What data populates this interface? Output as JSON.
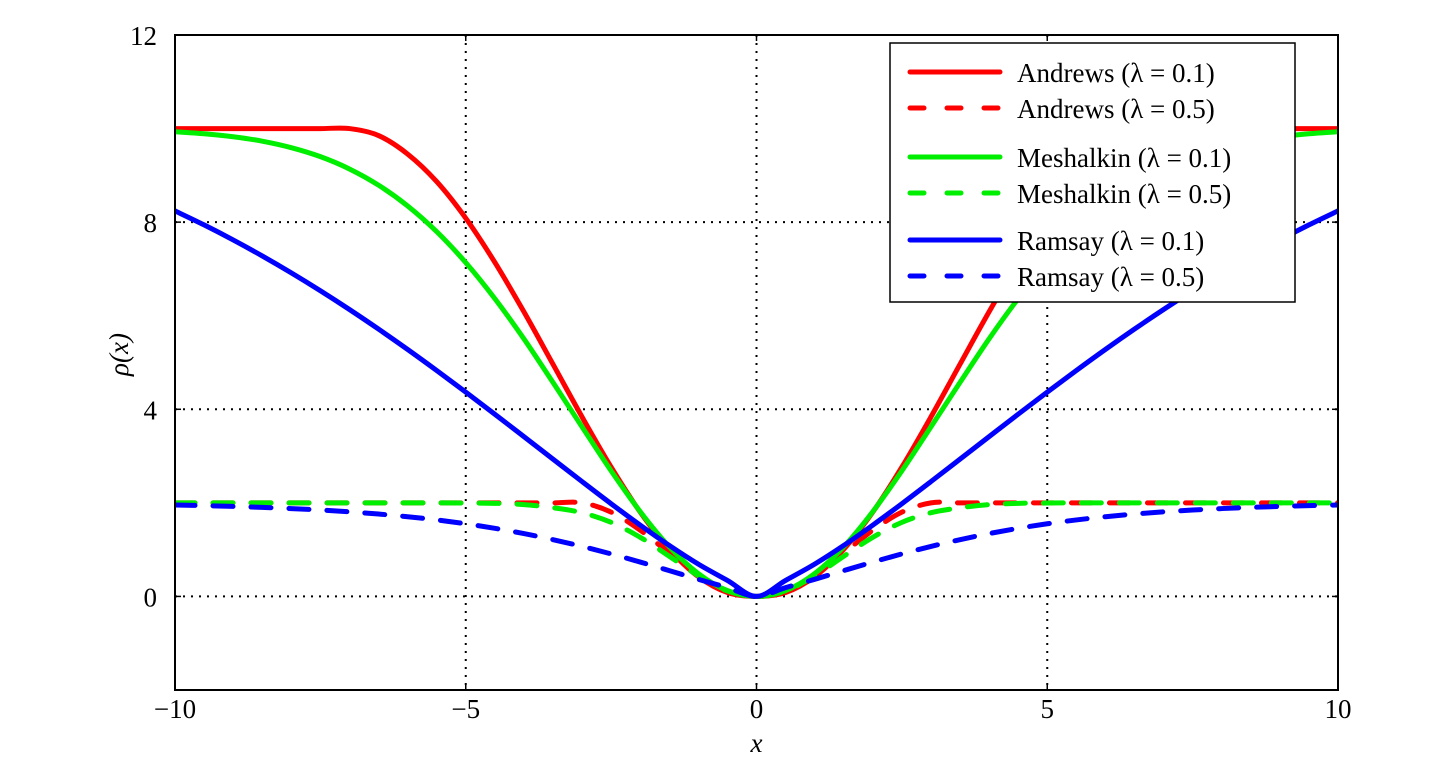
{
  "chart_data": {
    "type": "line",
    "title": "",
    "xlabel": "x",
    "ylabel": "ρ(x)",
    "xlim": [
      -10,
      10
    ],
    "ylim": [
      -2,
      12
    ],
    "grid": true,
    "grid_style": "dotted",
    "legend_position": "top-right",
    "xticks": [
      -10,
      -5,
      0,
      5,
      10
    ],
    "xtick_labels": [
      "−10",
      "−5",
      "0",
      "5",
      "10"
    ],
    "yticks": [
      0,
      4,
      8,
      12
    ],
    "ytick_labels": [
      "0",
      "4",
      "8",
      "12"
    ],
    "x": [
      -10,
      -9.5,
      -9,
      -8.5,
      -8,
      -7.5,
      -7,
      -6.5,
      -6,
      -5.5,
      -5,
      -4.5,
      -4,
      -3.5,
      -3,
      -2.5,
      -2,
      -1.5,
      -1,
      -0.5,
      0,
      0.5,
      1,
      1.5,
      2,
      2.5,
      3,
      3.5,
      4,
      4.5,
      5,
      5.5,
      6,
      6.5,
      7,
      7.5,
      8,
      8.5,
      9,
      9.5,
      10
    ],
    "series": [
      {
        "name": "Andrews (λ = 0.1)",
        "color": "#ff0000",
        "dash": "solid",
        "values": [
          10,
          10,
          10,
          10,
          10,
          10,
          10,
          9.851,
          9.456,
          8.867,
          8.085,
          7.141,
          6.084,
          4.964,
          3.837,
          2.764,
          1.803,
          1.008,
          0.423,
          0.083,
          0,
          0.083,
          0.423,
          1.008,
          1.803,
          2.764,
          3.837,
          4.964,
          6.084,
          7.141,
          8.085,
          8.867,
          9.456,
          9.851,
          10,
          10,
          10,
          10,
          10,
          10,
          10
        ]
      },
      {
        "name": "Andrews (λ = 0.5)",
        "color": "#ff0000",
        "dash": "dashed",
        "values": [
          2,
          2,
          2,
          2,
          2,
          2,
          2,
          2,
          2,
          2,
          2,
          2,
          2,
          2,
          2,
          1.801,
          1.416,
          0.929,
          0.46,
          0.122,
          0,
          0.122,
          0.46,
          0.929,
          1.416,
          1.801,
          2,
          2,
          2,
          2,
          2,
          2,
          2,
          2,
          2,
          2,
          2,
          2,
          2,
          2,
          2
        ]
      },
      {
        "name": "Meshalkin (λ = 0.1)",
        "color": "#00ee00",
        "dash": "solid",
        "values": [
          9.933,
          9.89,
          9.826,
          9.731,
          9.592,
          9.4,
          9.137,
          8.79,
          8.347,
          7.797,
          7.135,
          6.366,
          5.507,
          4.574,
          3.624,
          2.684,
          1.813,
          1.062,
          0.488,
          0.124,
          0,
          0.124,
          0.488,
          1.062,
          1.813,
          2.684,
          3.624,
          4.574,
          5.507,
          6.366,
          7.135,
          7.797,
          8.347,
          8.79,
          9.137,
          9.4,
          9.592,
          9.731,
          9.826,
          9.89,
          9.933
        ]
      },
      {
        "name": "Meshalkin (λ = 0.5)",
        "color": "#00ee00",
        "dash": "dashed",
        "values": [
          2,
          2,
          2,
          2,
          2,
          2,
          2,
          2,
          2,
          2,
          1.996,
          1.99,
          1.963,
          1.895,
          1.789,
          1.583,
          1.264,
          0.859,
          0.442,
          0.118,
          0,
          0.118,
          0.442,
          0.859,
          1.264,
          1.583,
          1.789,
          1.895,
          1.963,
          1.99,
          1.996,
          2,
          2,
          2,
          2,
          2,
          2,
          2,
          2,
          2,
          2
        ]
      },
      {
        "name": "Ramsay (λ = 0.1)",
        "color": "#0000ff",
        "dash": "solid",
        "values": [
          8.24,
          7.941,
          7.62,
          7.278,
          6.916,
          6.534,
          6.133,
          5.714,
          5.279,
          4.829,
          4.367,
          3.895,
          3.416,
          2.935,
          2.455,
          1.982,
          1.524,
          1.089,
          0.69,
          0.342,
          0,
          0.342,
          0.69,
          1.089,
          1.524,
          1.982,
          2.455,
          2.935,
          3.416,
          3.895,
          4.367,
          4.829,
          5.279,
          5.714,
          6.133,
          6.534,
          6.916,
          7.278,
          7.62,
          7.941,
          8.24
        ]
      },
      {
        "name": "Ramsay (λ = 0.5)",
        "color": "#0000ff",
        "dash": "dashed",
        "values": [
          1.954,
          1.941,
          1.924,
          1.903,
          1.878,
          1.847,
          1.808,
          1.761,
          1.704,
          1.635,
          1.553,
          1.456,
          1.343,
          1.214,
          1.069,
          0.909,
          0.735,
          0.552,
          0.366,
          0.188,
          0,
          0.188,
          0.366,
          0.552,
          0.735,
          0.909,
          1.069,
          1.214,
          1.343,
          1.456,
          1.553,
          1.635,
          1.704,
          1.761,
          1.808,
          1.847,
          1.878,
          1.903,
          1.924,
          1.941,
          1.954
        ]
      }
    ]
  }
}
